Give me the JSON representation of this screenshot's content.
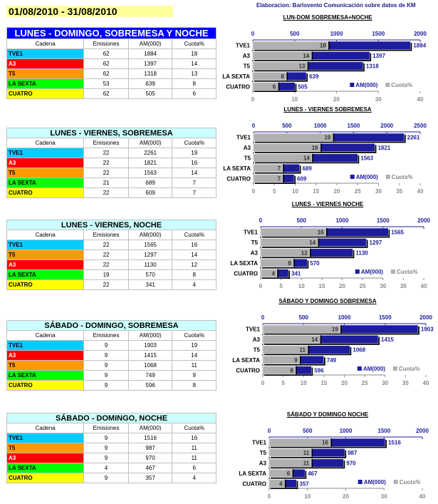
{
  "period": "01/08/2010 - 31/08/2010",
  "credit": "Elaboracion: Barlovento Comunicación sobre datos de KM",
  "colors": {
    "TVE1": "#00ccff",
    "A3": "#ff0000",
    "T5": "#ff9900",
    "LA SEXTA": "#00ff00",
    "CUATRO": "#ffff00",
    "am_bar": "#1c1c9c",
    "cuota_bar": "#b0b0b0",
    "title_blue": "#0000ff",
    "title_cyan": "#ccffff"
  },
  "headers": [
    "Cadena",
    "Emisiones",
    "AM(000)",
    "Cuota%"
  ],
  "tables": [
    {
      "title": "LUNES - DOMINGO, SOBREMESA Y NOCHE",
      "rows": [
        [
          "TVE1",
          "62",
          "1884",
          "18"
        ],
        [
          "A3",
          "62",
          "1397",
          "14"
        ],
        [
          "T5",
          "62",
          "1318",
          "13"
        ],
        [
          "LA SEXTA",
          "53",
          "639",
          "8"
        ],
        [
          "CUATRO",
          "62",
          "505",
          "6"
        ]
      ]
    },
    {
      "title": "LUNES - VIERNES, SOBREMESA",
      "rows": [
        [
          "TVE1",
          "22",
          "2261",
          "19"
        ],
        [
          "A3",
          "22",
          "1821",
          "16"
        ],
        [
          "T5",
          "22",
          "1563",
          "14"
        ],
        [
          "LA SEXTA",
          "21",
          "689",
          "7"
        ],
        [
          "CUATRO",
          "22",
          "609",
          "7"
        ]
      ]
    },
    {
      "title": "LUNES - VIERNES, NOCHE",
      "rows": [
        [
          "TVE1",
          "22",
          "1565",
          "16"
        ],
        [
          "T5",
          "22",
          "1297",
          "14"
        ],
        [
          "A3",
          "22",
          "1130",
          "12"
        ],
        [
          "LA SEXTA",
          "19",
          "570",
          "8"
        ],
        [
          "CUATRO",
          "22",
          "341",
          "4"
        ]
      ]
    },
    {
      "title": "SÁBADO - DOMINGO, SOBREMESA",
      "rows": [
        [
          "TVE1",
          "9",
          "1903",
          "19"
        ],
        [
          "A3",
          "9",
          "1415",
          "14"
        ],
        [
          "T5",
          "9",
          "1068",
          "11"
        ],
        [
          "LA SEXTA",
          "9",
          "749",
          "9"
        ],
        [
          "CUATRO",
          "9",
          "596",
          "8"
        ]
      ]
    },
    {
      "title": "SÁBADO - DOMINGO, NOCHE",
      "rows": [
        [
          "TVE1",
          "9",
          "1516",
          "16"
        ],
        [
          "T5",
          "9",
          "987",
          "11"
        ],
        [
          "A3",
          "9",
          "970",
          "11"
        ],
        [
          "LA SEXTA",
          "4",
          "467",
          "6"
        ],
        [
          "CUATRO",
          "9",
          "357",
          "4"
        ]
      ]
    }
  ],
  "chart_data": [
    {
      "type": "bar",
      "orientation": "horizontal",
      "title": "LUN-DOM SOBREMESA+NOCHE",
      "categories": [
        "TVE1",
        "A3",
        "T5",
        "LA SEXTA",
        "CUATRO"
      ],
      "series": [
        {
          "name": "AM(000)",
          "values": [
            1884,
            1397,
            1318,
            639,
            505
          ],
          "axis": "top",
          "xlim": [
            0,
            2000
          ],
          "ticks": [
            "0",
            "500",
            "1000",
            "1500",
            "2000"
          ]
        },
        {
          "name": "Cuota%",
          "values": [
            18,
            14,
            13,
            8,
            6
          ],
          "axis": "bottom",
          "xlim": [
            0,
            40
          ],
          "ticks": [
            "0",
            "10",
            "20",
            "30",
            "40"
          ]
        }
      ],
      "legend": "bottom-right"
    },
    {
      "type": "bar",
      "orientation": "horizontal",
      "title": "LUNES - VIERNES SOBREMESA",
      "categories": [
        "TVE1",
        "A3",
        "T5",
        "LA SEXTA",
        "CUATRO"
      ],
      "series": [
        {
          "name": "AM(000)",
          "values": [
            2261,
            1821,
            1563,
            689,
            609
          ],
          "axis": "top",
          "xlim": [
            0,
            2500
          ],
          "ticks": [
            "0",
            "500",
            "1000",
            "1500",
            "2000",
            "2500"
          ]
        },
        {
          "name": "Cuota%",
          "values": [
            19,
            16,
            14,
            7,
            7
          ],
          "axis": "bottom",
          "xlim": [
            0,
            40
          ],
          "ticks": [
            "0",
            "5",
            "10",
            "15",
            "20",
            "25",
            "30",
            "35",
            "40"
          ]
        }
      ],
      "legend": "bottom-right"
    },
    {
      "type": "bar",
      "orientation": "horizontal",
      "title": "LUNES - VIERNES NOCHE",
      "categories": [
        "TVE1",
        "T5",
        "A3",
        "LA SEXTA",
        "CUATRO"
      ],
      "series": [
        {
          "name": "AM(000)",
          "values": [
            1565,
            1297,
            1130,
            570,
            341
          ],
          "axis": "top",
          "xlim": [
            0,
            2000
          ],
          "ticks": [
            "0",
            "500",
            "1000",
            "1500",
            "2000"
          ]
        },
        {
          "name": "Cuota%",
          "values": [
            16,
            14,
            12,
            8,
            4
          ],
          "axis": "bottom",
          "xlim": [
            0,
            40
          ],
          "ticks": [
            "0",
            "5",
            "10",
            "15",
            "20",
            "25",
            "30",
            "35",
            "40"
          ]
        }
      ],
      "legend": "bottom-right"
    },
    {
      "type": "bar",
      "orientation": "horizontal",
      "title": "SÁBADO Y DOMINGO SOBREMESA",
      "categories": [
        "TVE1",
        "A3",
        "T5",
        "LA SEXTA",
        "CUATRO"
      ],
      "series": [
        {
          "name": "AM(000)",
          "values": [
            1903,
            1415,
            1068,
            749,
            596
          ],
          "axis": "top",
          "xlim": [
            0,
            2000
          ],
          "ticks": [
            "0",
            "500",
            "1000",
            "1500",
            "2000"
          ]
        },
        {
          "name": "Cuota%",
          "values": [
            19,
            14,
            11,
            9,
            8
          ],
          "axis": "bottom",
          "xlim": [
            0,
            40
          ],
          "ticks": [
            "0",
            "5",
            "10",
            "15",
            "20",
            "25",
            "30",
            "35",
            "40"
          ]
        }
      ],
      "legend": "bottom-right"
    },
    {
      "type": "bar",
      "orientation": "horizontal",
      "title": "SÁBADO Y DOMINGO NOCHE",
      "categories": [
        "TVE1",
        "T5",
        "A3",
        "LA SEXTA",
        "CUATRO"
      ],
      "series": [
        {
          "name": "AM(000)",
          "values": [
            1516,
            987,
            970,
            467,
            357
          ],
          "axis": "top",
          "xlim": [
            0,
            2000
          ],
          "ticks": [
            "0",
            "500",
            "1000",
            "1500",
            "2000"
          ]
        },
        {
          "name": "Cuota%",
          "values": [
            16,
            11,
            11,
            6,
            4
          ],
          "axis": "bottom",
          "xlim": [
            0,
            40
          ],
          "ticks": [
            "0",
            "10",
            "20",
            "30",
            "40"
          ]
        }
      ],
      "legend": "bottom-right"
    }
  ]
}
